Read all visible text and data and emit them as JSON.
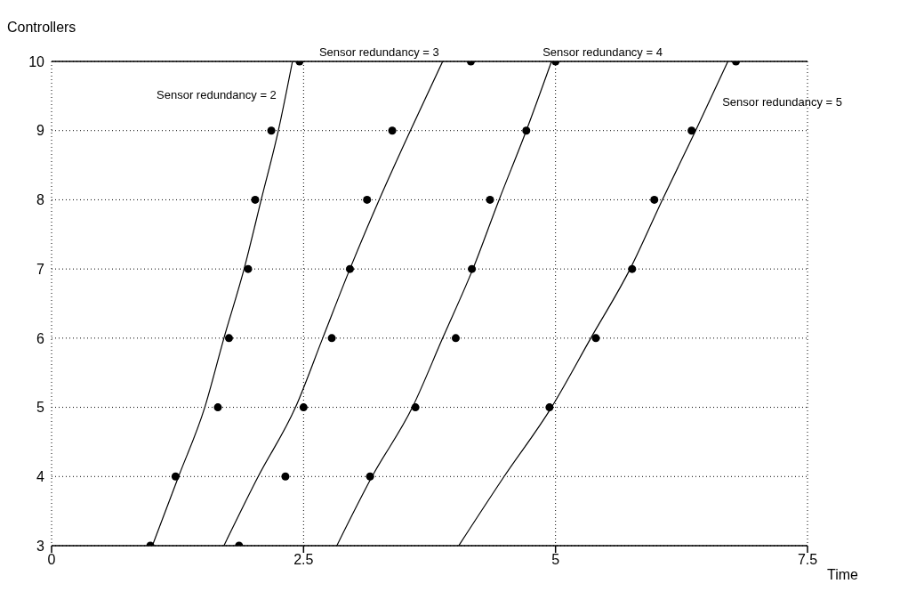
{
  "chart_data": {
    "type": "line",
    "xlabel": "Time",
    "ylabel": "Controllers",
    "xlim": [
      0,
      7.5
    ],
    "xticks": [
      0,
      2.5,
      5,
      7.5
    ],
    "ylim": [
      3,
      10
    ],
    "yticks": [
      3,
      4,
      5,
      6,
      7,
      8,
      9,
      10
    ],
    "grid": true,
    "line_style": "solid",
    "series": [
      {
        "name": "Sensor redundancy = 2",
        "color": "#000000",
        "marker": "none",
        "x": [
          1.0,
          1.26,
          1.52,
          1.71,
          1.91,
          2.08,
          2.25,
          2.39
        ],
        "values": [
          3,
          4,
          5,
          6,
          7,
          8,
          9,
          10
        ]
      },
      {
        "name": "Sensor redundancy = 3",
        "color": "#000000",
        "marker": "none",
        "x": [
          1.71,
          2.05,
          2.42,
          2.69,
          2.96,
          3.25,
          3.56,
          3.88
        ],
        "values": [
          3,
          4,
          5,
          6,
          7,
          8,
          9,
          10
        ]
      },
      {
        "name": "Sensor redundancy = 4",
        "color": "#000000",
        "marker": "none",
        "x": [
          2.83,
          3.18,
          3.58,
          3.88,
          4.18,
          4.44,
          4.71,
          4.96
        ],
        "values": [
          3,
          4,
          5,
          6,
          7,
          8,
          9,
          10
        ]
      },
      {
        "name": "Sensor redundancy = 5",
        "color": "#000000",
        "marker": "none",
        "x": [
          4.04,
          4.49,
          4.96,
          5.35,
          5.74,
          6.06,
          6.39,
          6.71
        ],
        "values": [
          3,
          4,
          5,
          6,
          7,
          8,
          9,
          10
        ]
      },
      {
        "type": "scatter",
        "color": "#000000",
        "marker": "circle",
        "x": [
          0.98,
          1.23,
          1.65,
          1.76,
          1.95,
          2.02,
          2.18,
          2.46
        ],
        "values": [
          3,
          4,
          5,
          6,
          7,
          8,
          9,
          10
        ]
      },
      {
        "type": "scatter",
        "color": "#000000",
        "marker": "circle",
        "x": [
          1.86,
          2.32,
          2.5,
          2.78,
          2.96,
          3.13,
          3.38,
          4.16
        ],
        "values": [
          3,
          4,
          5,
          6,
          7,
          8,
          9,
          10
        ]
      },
      {
        "type": "scatter",
        "color": "#000000",
        "marker": "circle",
        "x": [
          3.16,
          3.61,
          4.01,
          4.17,
          4.35,
          4.71,
          5.0
        ],
        "values": [
          4,
          5,
          6,
          7,
          8,
          9,
          10
        ]
      },
      {
        "type": "scatter",
        "color": "#000000",
        "marker": "circle",
        "x": [
          4.94,
          5.4,
          5.76,
          5.98,
          6.35,
          6.79
        ],
        "values": [
          5,
          6,
          7,
          8,
          9,
          10
        ]
      }
    ]
  }
}
